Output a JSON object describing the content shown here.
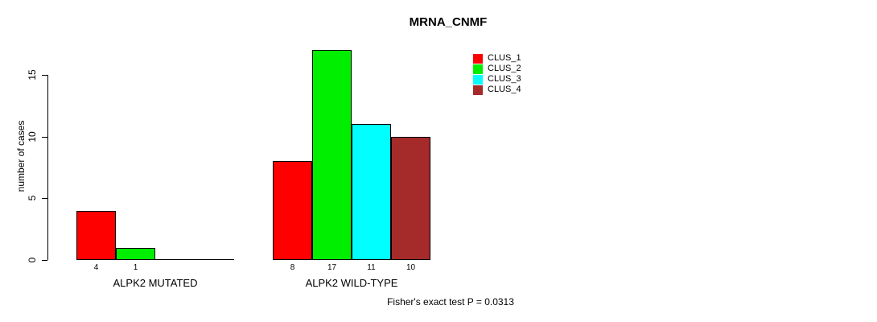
{
  "title": "MRNA_CNMF",
  "annotation": "Fisher's exact test P = 0.0313",
  "chart_data": {
    "type": "bar",
    "title": "MRNA_CNMF",
    "xlabel": "",
    "ylabel": "number of cases",
    "ylim": [
      0,
      15
    ],
    "yticks": [
      0,
      5,
      10,
      15
    ],
    "grid": false,
    "legend_position": "top-right",
    "bar_value_labels_shown": true,
    "categories": [
      "ALPK2 MUTATED",
      "ALPK2 WILD-TYPE"
    ],
    "series": [
      {
        "name": "CLUS_1",
        "color": "#ff0000",
        "values": [
          4,
          8
        ]
      },
      {
        "name": "CLUS_2",
        "color": "#00ee00",
        "values": [
          1,
          17
        ]
      },
      {
        "name": "CLUS_3",
        "color": "#00ffff",
        "values": [
          0,
          11
        ]
      },
      {
        "name": "CLUS_4",
        "color": "#a52a2a",
        "values": [
          0,
          10
        ]
      }
    ]
  }
}
